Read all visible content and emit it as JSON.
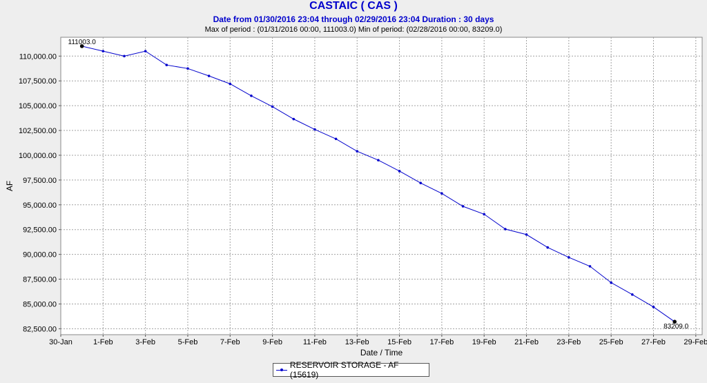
{
  "header": {
    "title": "CASTAIC ( CAS )",
    "subtitle": "Date from 01/30/2016 23:04 through 02/29/2016 23:04 Duration : 30 days",
    "period_info": "Max of period : (01/31/2016 00:00, 111003.0)  Min of period: (02/28/2016 00:00,  83209.0)"
  },
  "colors": {
    "series": "#0000cc",
    "title": "#0000cc",
    "plot_bg": "#ffffff",
    "page_bg": "#eeeeee",
    "grid": "#a0a0a0"
  },
  "chart_data": {
    "type": "line",
    "xlabel": "Date / Time",
    "ylabel": "AF",
    "x_tick_labels": [
      "30-Jan",
      "1-Feb",
      "3-Feb",
      "5-Feb",
      "7-Feb",
      "9-Feb",
      "11-Feb",
      "13-Feb",
      "15-Feb",
      "17-Feb",
      "19-Feb",
      "21-Feb",
      "23-Feb",
      "25-Feb",
      "27-Feb",
      "29-Feb"
    ],
    "x_tick_days": [
      0,
      2,
      4,
      6,
      8,
      10,
      12,
      14,
      16,
      18,
      20,
      22,
      24,
      26,
      28,
      30
    ],
    "xlim_days": [
      0,
      30.3
    ],
    "y_tick_labels": [
      "82,500.00",
      "85,000.00",
      "87,500.00",
      "90,000.00",
      "92,500.00",
      "95,000.00",
      "97,500.00",
      "100,000.00",
      "102,500.00",
      "105,000.00",
      "107,500.00",
      "110,000.00"
    ],
    "y_ticks": [
      82500,
      85000,
      87500,
      90000,
      92500,
      95000,
      97500,
      100000,
      102500,
      105000,
      107500,
      110000
    ],
    "ylim": [
      81900,
      111900
    ],
    "grid": true,
    "legend_position": "bottom-center",
    "series": [
      {
        "name": "RESERVOIR STORAGE - AF (15619)",
        "x_dates": [
          "01/31",
          "02/01",
          "02/02",
          "02/03",
          "02/04",
          "02/05",
          "02/06",
          "02/07",
          "02/08",
          "02/09",
          "02/10",
          "02/11",
          "02/12",
          "02/13",
          "02/14",
          "02/15",
          "02/16",
          "02/17",
          "02/18",
          "02/19",
          "02/20",
          "02/21",
          "02/22",
          "02/23",
          "02/24",
          "02/25",
          "02/26",
          "02/27",
          "02/28"
        ],
        "x_days": [
          1,
          2,
          3,
          4,
          5,
          6,
          7,
          8,
          9,
          10,
          11,
          12,
          13,
          14,
          15,
          16,
          17,
          18,
          19,
          20,
          21,
          22,
          23,
          24,
          25,
          26,
          27,
          28,
          29
        ],
        "values": [
          111003,
          110500,
          110000,
          110500,
          109100,
          108750,
          108000,
          107200,
          106000,
          104900,
          103650,
          102600,
          101650,
          100400,
          99500,
          98400,
          97200,
          96150,
          94850,
          94050,
          92550,
          92000,
          90700,
          89700,
          88800,
          87150,
          85950,
          84700,
          83209
        ]
      }
    ],
    "annotations": [
      {
        "text": "111003.0",
        "x_day": 1,
        "value": 111003,
        "anchor": "above-left"
      },
      {
        "text": "83209.0",
        "x_day": 29,
        "value": 83209,
        "anchor": "below"
      }
    ]
  }
}
